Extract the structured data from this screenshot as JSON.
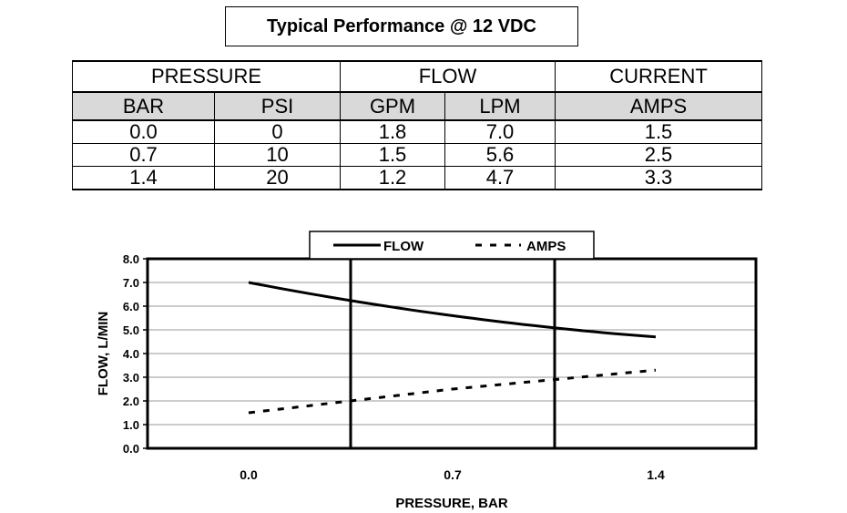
{
  "title": "Typical Performance @ 12 VDC",
  "table": {
    "groups": [
      "PRESSURE",
      "FLOW",
      "CURRENT"
    ],
    "units": [
      "BAR",
      "PSI",
      "GPM",
      "LPM",
      "AMPS"
    ],
    "rows": [
      [
        "0.0",
        "0",
        "1.8",
        "7.0",
        "1.5"
      ],
      [
        "0.7",
        "10",
        "1.5",
        "5.6",
        "2.5"
      ],
      [
        "1.4",
        "20",
        "1.2",
        "4.7",
        "3.3"
      ]
    ]
  },
  "chart_data": {
    "type": "line",
    "x": [
      0.0,
      0.7,
      1.4
    ],
    "x_tick_labels": [
      "0.0",
      "0.7",
      "1.4"
    ],
    "xlabel": "PRESSURE, BAR",
    "ylabel": "FLOW, L/MIN",
    "ylim": [
      0,
      8
    ],
    "y_tick_labels": [
      "0.0",
      "1.0",
      "2.0",
      "3.0",
      "4.0",
      "5.0",
      "6.0",
      "7.0",
      "8.0"
    ],
    "grid": true,
    "legend_position": "top-center",
    "series": [
      {
        "name": "FLOW",
        "style": "solid",
        "values": [
          7.0,
          5.6,
          4.7
        ]
      },
      {
        "name": "AMPS",
        "style": "dashed",
        "values": [
          1.5,
          2.5,
          3.3
        ]
      }
    ]
  }
}
